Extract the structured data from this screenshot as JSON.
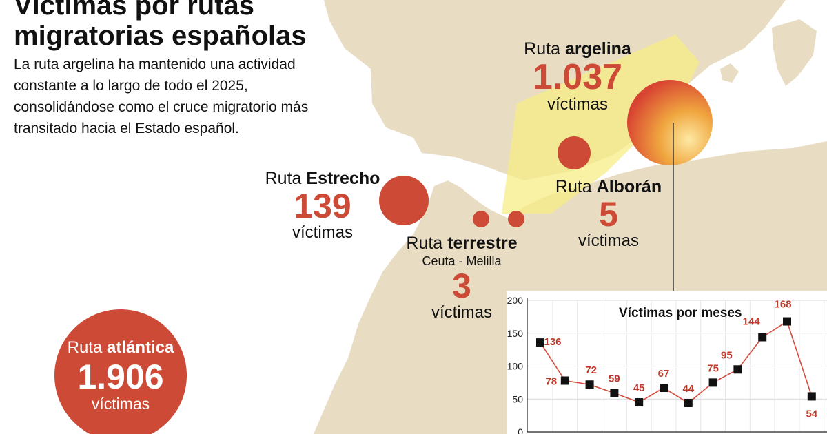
{
  "header": {
    "title": "Víctimas por rutas migratorias españolas",
    "subtitle": "La ruta argelina ha mantenido una actividad constante a lo largo de todo el 2025, consolidándose como el cruce migratorio más transitado hacia el Estado español."
  },
  "routes": {
    "argelina": {
      "prefix": "Ruta",
      "name": "argelina",
      "value": "1.037",
      "unit": "víctimas"
    },
    "estrecho": {
      "prefix": "Ruta",
      "name": "Estrecho",
      "value": "139",
      "unit": "víctimas"
    },
    "alboran": {
      "prefix": "Ruta",
      "name": "Alborán",
      "value": "5",
      "unit": "víctimas"
    },
    "terrestre": {
      "prefix": "Ruta",
      "name": "terrestre",
      "detail": "Ceuta - Melilla",
      "value": "3",
      "unit": "víctimas"
    },
    "atlantica": {
      "prefix": "Ruta",
      "name": "atlántica",
      "value": "1.906",
      "unit": "víctimas"
    }
  },
  "colors": {
    "land": "#e8dcc3",
    "sea": "#ffffff",
    "route_circle": "#cc4a36",
    "highlight_band": "#f7ee86",
    "chart_line": "#d44b3d",
    "chart_marker": "#111111"
  },
  "chart_data": {
    "type": "line",
    "title": "Víctimas por meses",
    "xlabel": "",
    "ylabel": "",
    "ylim": [
      0,
      200
    ],
    "yticks": [
      0,
      50,
      100,
      150,
      200
    ],
    "grid": true,
    "values": [
      136,
      78,
      72,
      59,
      45,
      67,
      44,
      75,
      95,
      144,
      168,
      54
    ],
    "series": [
      {
        "values": [
          136,
          78,
          72,
          59,
          45,
          67,
          44,
          75,
          95,
          144,
          168,
          54
        ]
      }
    ]
  }
}
